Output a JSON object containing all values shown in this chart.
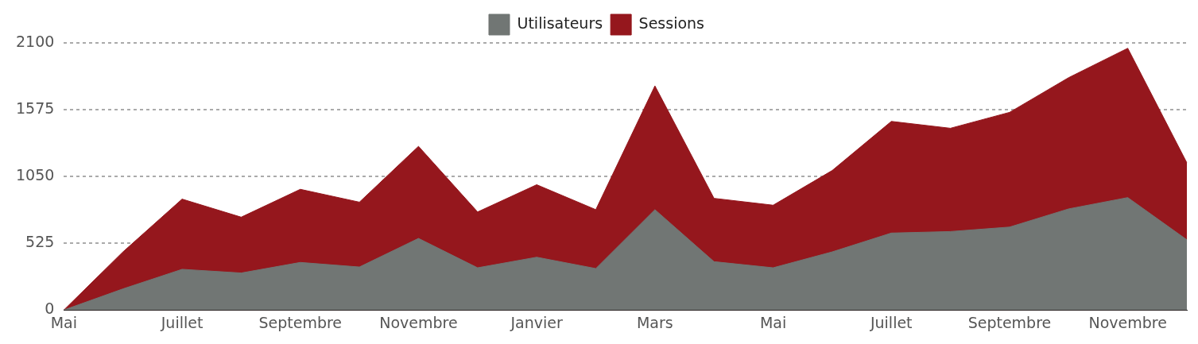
{
  "chart_data": {
    "type": "area",
    "categories": [
      "Mai",
      null,
      "Juillet",
      null,
      "Septembre",
      null,
      "Novembre",
      null,
      "Janvier",
      null,
      "Mars",
      null,
      "Mai",
      null,
      "Juillet",
      null,
      "Septembre",
      null,
      "Novembre",
      null
    ],
    "series": [
      {
        "name": "Utilisateurs",
        "color": "#717674",
        "values": [
          0,
          166,
          320,
          291,
          374,
          338,
          563,
          332,
          415,
          326,
          789,
          380,
          332,
          457,
          605,
          617,
          652,
          795,
          884,
          552
        ]
      },
      {
        "name": "Sessions",
        "color": "#95171d",
        "values": [
          0,
          457,
          872,
          730,
          949,
          848,
          1287,
          771,
          985,
          789,
          1762,
          878,
          824,
          1097,
          1483,
          1429,
          1554,
          1827,
          2058,
          1157
        ]
      }
    ],
    "ylim": [
      0,
      2100
    ],
    "yticks": [
      0,
      525,
      1050,
      1575,
      2100
    ],
    "grid": "y",
    "legend": "top",
    "marker": "none",
    "line_style": "solid"
  }
}
